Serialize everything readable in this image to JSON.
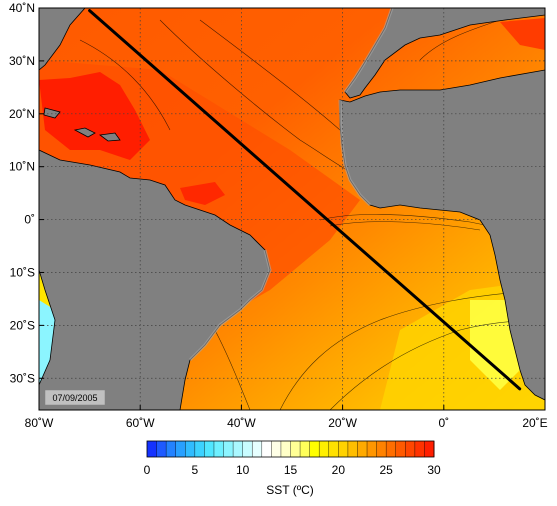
{
  "map": {
    "date_label": "07/09/2005",
    "lon_ticks": [
      {
        "lon": -80,
        "label": "80˚W"
      },
      {
        "lon": -60,
        "label": "60˚W"
      },
      {
        "lon": -40,
        "label": "40˚W"
      },
      {
        "lon": -20,
        "label": "20˚W"
      },
      {
        "lon": 0,
        "label": "0˚"
      },
      {
        "lon": 20,
        "label": "20˚E"
      }
    ],
    "lat_ticks": [
      {
        "lat": 40,
        "label": "40˚N"
      },
      {
        "lat": 30,
        "label": "30˚N"
      },
      {
        "lat": 20,
        "label": "20˚N"
      },
      {
        "lat": 10,
        "label": "10˚N"
      },
      {
        "lat": 0,
        "label": "0˚"
      },
      {
        "lat": -10,
        "label": "10˚S"
      },
      {
        "lat": -20,
        "label": "20˚S"
      },
      {
        "lat": -30,
        "label": "30˚S"
      }
    ],
    "lon_range": [
      -80,
      20
    ],
    "lat_range": [
      -36,
      40
    ],
    "grid": true,
    "land_color": "#808080",
    "track": {
      "start": [
        -70,
        39.5
      ],
      "end": [
        15,
        -32
      ],
      "color": "#000000"
    }
  },
  "colorbar": {
    "title": "SST (ºC)",
    "min": 0,
    "max": 30,
    "tick_labels": [
      "0",
      "5",
      "10",
      "15",
      "20",
      "25",
      "30"
    ],
    "colors": [
      "#1432ff",
      "#1e5aff",
      "#2382ff",
      "#28a0ff",
      "#30bcff",
      "#3cd2ff",
      "#50e6ff",
      "#6ef0ff",
      "#8cf5ff",
      "#aaf8ff",
      "#c8fcff",
      "#e6ffff",
      "#ffffff",
      "#ffffe6",
      "#ffffc8",
      "#ffff96",
      "#ffff5a",
      "#ffff00",
      "#fff000",
      "#ffe100",
      "#ffd200",
      "#ffbe00",
      "#ffaa00",
      "#ff9600",
      "#ff8200",
      "#ff6e00",
      "#ff5a00",
      "#ff4600",
      "#ff3200",
      "#ff1e00"
    ]
  }
}
